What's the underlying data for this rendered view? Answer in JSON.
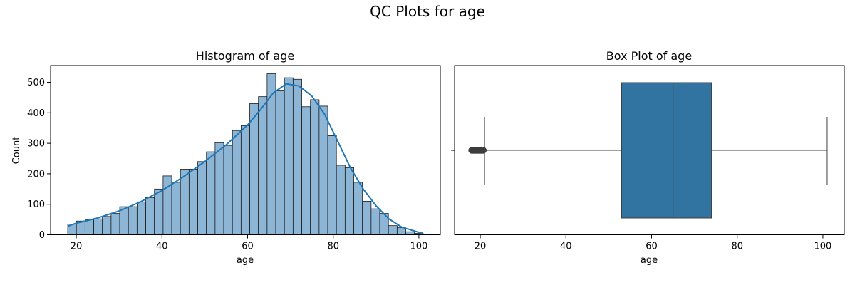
{
  "figure_title": "QC Plots for age",
  "colors": {
    "hist_fill": "#8db5d6",
    "hist_edge": "#1a1a1a",
    "kde_line": "#1f77b4",
    "box_fill": "#3274a1",
    "whisker": "#3d3d3d",
    "outlier": "#3d3d3d"
  },
  "chart_data": [
    {
      "type": "histogram",
      "title": "Histogram of age",
      "xlabel": "age",
      "ylabel": "Count",
      "xlim": [
        14.0,
        105.0
      ],
      "ylim": [
        0,
        555
      ],
      "xticks": [
        20,
        40,
        60,
        80,
        100
      ],
      "yticks": [
        0,
        100,
        200,
        300,
        400,
        500
      ],
      "bin_start": 18,
      "bin_width": 2.024,
      "counts": [
        35,
        45,
        50,
        52,
        60,
        70,
        92,
        92,
        108,
        122,
        150,
        193,
        172,
        215,
        215,
        240,
        272,
        302,
        293,
        342,
        358,
        430,
        453,
        528,
        472,
        515,
        510,
        420,
        443,
        422,
        325,
        228,
        220,
        172,
        110,
        85,
        70,
        30,
        23,
        10,
        5
      ],
      "kde": {
        "x": [
          18,
          20,
          25,
          30,
          35,
          40,
          45,
          50,
          55,
          60,
          63,
          66,
          69,
          72,
          75,
          78,
          81,
          84,
          87,
          90,
          93,
          96,
          100,
          101
        ],
        "y": [
          28,
          38,
          55,
          78,
          108,
          145,
          190,
          240,
          295,
          360,
          410,
          465,
          495,
          488,
          455,
          395,
          308,
          220,
          150,
          95,
          52,
          25,
          8,
          5
        ]
      }
    },
    {
      "type": "box",
      "title": "Box Plot of age",
      "xlabel": "age",
      "xlim": [
        14.0,
        105.0
      ],
      "xticks": [
        20,
        40,
        60,
        80,
        100
      ],
      "whisker_low": 21,
      "q1": 53,
      "median": 65,
      "q3": 74,
      "whisker_high": 101,
      "outliers": [
        18.0,
        18.3,
        18.6,
        18.9,
        19.2,
        19.5,
        19.8,
        20.1,
        20.4,
        20.7
      ]
    }
  ]
}
